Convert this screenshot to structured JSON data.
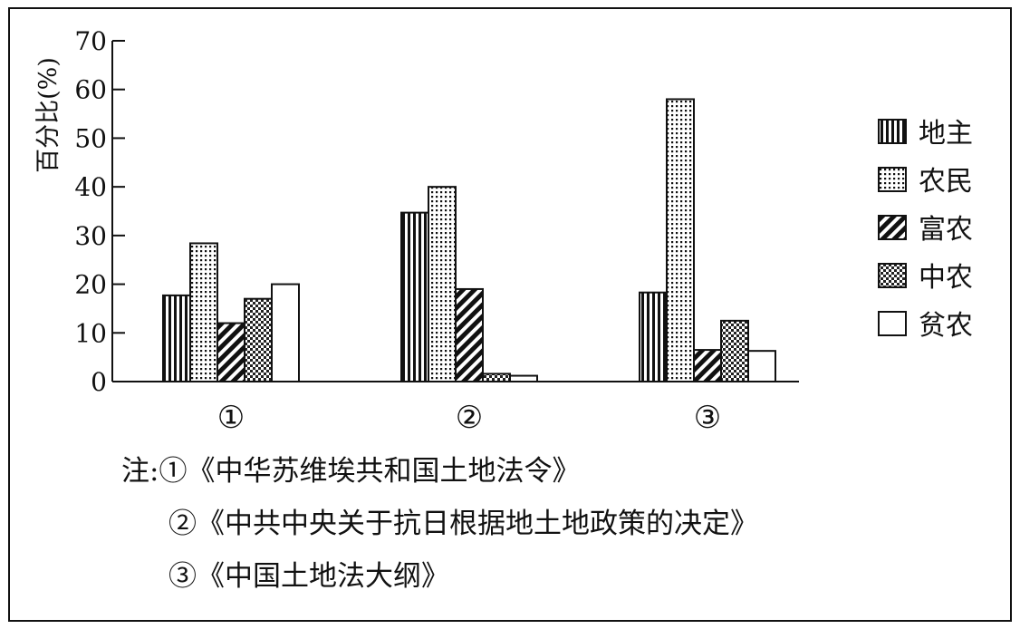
{
  "chart_data": {
    "type": "bar",
    "title": "",
    "xlabel": "",
    "ylabel": "百分比(%)",
    "ylim": [
      0,
      70
    ],
    "yticks": [
      0,
      10,
      20,
      30,
      40,
      50,
      60,
      70
    ],
    "categories": [
      "①",
      "②",
      "③"
    ],
    "legend_position": "right",
    "grid": false,
    "series": [
      {
        "name": "地主",
        "pattern": "vertical-stripes",
        "values": [
          17.7,
          34.7,
          18.3
        ]
      },
      {
        "name": "农民",
        "pattern": "dots",
        "values": [
          28.4,
          40.0,
          58.0
        ]
      },
      {
        "name": "富农",
        "pattern": "diagonal-hatch",
        "values": [
          12.0,
          19.0,
          6.5
        ]
      },
      {
        "name": "中农",
        "pattern": "checker",
        "values": [
          17.0,
          1.6,
          12.5
        ]
      },
      {
        "name": "贫农",
        "pattern": "blank",
        "values": [
          20.0,
          1.2,
          6.3
        ]
      }
    ]
  },
  "notes": {
    "lines": [
      "注:①《中华苏维埃共和国土地法令》",
      "②《中共中央关于抗日根据地土地政策的决定》",
      "③《中国土地法大纲》"
    ]
  }
}
